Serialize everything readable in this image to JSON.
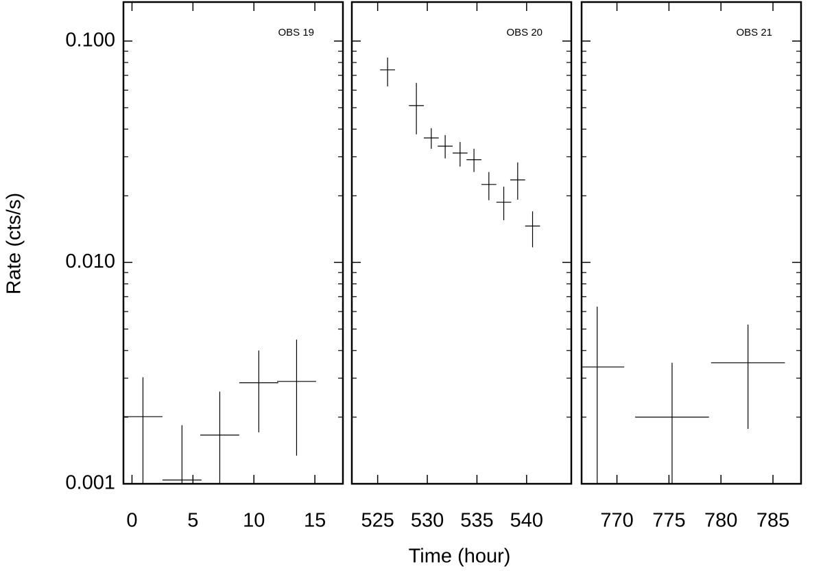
{
  "chart_data": [
    {
      "type": "errorbar",
      "annotation": "OBS 19",
      "ylabel": "Rate (cts/s)",
      "log_y": true,
      "xlim": [
        -0.7,
        17.3
      ],
      "xticks": [
        0,
        5,
        10,
        15
      ],
      "ylim": [
        0.001,
        0.15
      ],
      "yticks": [
        0.001,
        {
          "value": 0.01,
          "label": "0.010"
        },
        {
          "value": 0.1,
          "label": "0.100"
        }
      ],
      "yminor": [
        0.002,
        0.003,
        0.004,
        0.005,
        0.006,
        0.007,
        0.008,
        0.009,
        0.02,
        0.03,
        0.04,
        0.05,
        0.06,
        0.07,
        0.08,
        0.09
      ],
      "series": [
        {
          "color": "#000000",
          "x": [
            0.9,
            4.1,
            7.2,
            10.4,
            13.5
          ],
          "xerr": [
            1.6,
            1.6,
            1.6,
            1.6,
            1.6
          ],
          "values": [
            0.00201,
            0.00104,
            0.00166,
            0.00286,
            0.0029
          ],
          "y_low": [
            0.0008,
            0.0005,
            0.0009,
            0.00171,
            0.00134
          ],
          "y_high": [
            0.00303,
            0.00184,
            0.00261,
            0.004,
            0.00448
          ]
        }
      ]
    },
    {
      "type": "errorbar",
      "annotation": "OBS 20",
      "xlabel": "Time (hour)",
      "log_y": true,
      "xlim": [
        522.4,
        544.5
      ],
      "xticks": [
        525,
        530,
        535,
        540
      ],
      "ylim": [
        0.001,
        0.15
      ],
      "series": [
        {
          "color": "#000000",
          "x": [
            526.0,
            528.9,
            530.4,
            531.8,
            533.3,
            534.7,
            536.2,
            537.7,
            539.1,
            540.6
          ],
          "xerr": [
            0.75,
            0.75,
            0.75,
            0.75,
            0.75,
            0.75,
            0.75,
            0.75,
            0.75,
            0.75
          ],
          "values": [
            0.0741,
            0.0511,
            0.0365,
            0.0335,
            0.0312,
            0.0291,
            0.0225,
            0.0187,
            0.0236,
            0.0146
          ],
          "y_low": [
            0.0624,
            0.0379,
            0.0326,
            0.0295,
            0.0271,
            0.0256,
            0.0191,
            0.0155,
            0.0192,
            0.0117
          ],
          "y_high": [
            0.0843,
            0.0647,
            0.0404,
            0.0376,
            0.035,
            0.0326,
            0.0256,
            0.022,
            0.0283,
            0.017
          ]
        }
      ]
    },
    {
      "type": "errorbar",
      "annotation": "OBS 21",
      "log_y": true,
      "xlim": [
        766.6,
        787.7
      ],
      "xticks": [
        770,
        775,
        780,
        785
      ],
      "ylim": [
        0.001,
        0.15
      ],
      "series": [
        {
          "color": "#000000",
          "x": [
            768.1,
            775.3,
            782.6
          ],
          "xerr": [
            2.6,
            3.55,
            3.55
          ],
          "values": [
            0.00337,
            0.002,
            0.00352
          ],
          "y_low": [
            0.0008,
            0.0008,
            0.00177
          ],
          "y_high": [
            0.00631,
            0.00352,
            0.00524
          ]
        }
      ]
    }
  ]
}
